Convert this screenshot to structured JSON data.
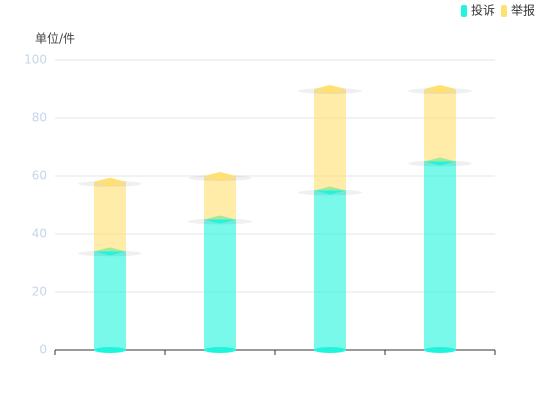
{
  "chart_data": {
    "type": "bar",
    "stacked": true,
    "y_axis_label": "单位/件",
    "categories": [
      null,
      null,
      null,
      null
    ],
    "series": [
      {
        "name": "投诉",
        "color": "#1ff5dc",
        "values": [
          34,
          45,
          55,
          65
        ]
      },
      {
        "name": "举报",
        "color": "#ffe070",
        "values": [
          24,
          15,
          35,
          25
        ]
      }
    ],
    "ylim": [
      0,
      100
    ],
    "yticks": [
      0,
      20,
      40,
      60,
      80,
      100
    ],
    "grid": true,
    "legend": "top-right"
  }
}
